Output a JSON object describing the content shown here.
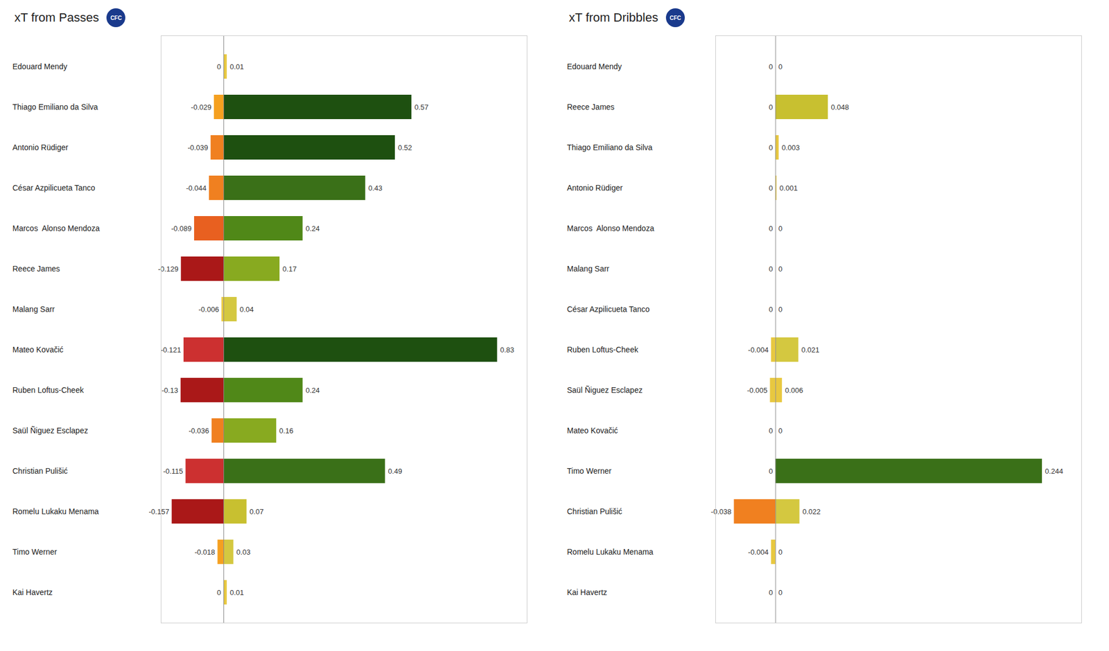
{
  "chart_data": [
    {
      "type": "bar",
      "title": "xT from Passes",
      "orientation": "horizontal",
      "categories": [
        "Edouard Mendy",
        "Thiago Emiliano da Silva",
        "Antonio Rüdiger",
        "César Azpilicueta Tanco",
        "Marcos  Alonso Mendoza",
        "Reece James",
        "Malang Sarr",
        "Mateo Kovačić",
        "Ruben Loftus-Cheek",
        "Saül Ñiguez Esclapez",
        "Christian Pulišić",
        "Romelu Lukaku Menama",
        "Timo Werner",
        "Kai Havertz"
      ],
      "series": [
        {
          "values": [
            0,
            -0.029,
            -0.039,
            -0.044,
            -0.089,
            -0.129,
            -0.006,
            -0.121,
            -0.13,
            -0.036,
            -0.115,
            -0.157,
            -0.018,
            0
          ],
          "colors": [
            "#e8c840",
            "#f5a020",
            "#f08020",
            "#f08020",
            "#e86020",
            "#aa1818",
            "#e8c840",
            "#cc3030",
            "#aa1818",
            "#f08020",
            "#cc3030",
            "#aa1818",
            "#f5a020",
            "#e8c840"
          ]
        },
        {
          "values": [
            0.01,
            0.57,
            0.52,
            0.43,
            0.24,
            0.17,
            0.04,
            0.83,
            0.24,
            0.16,
            0.49,
            0.07,
            0.03,
            0.01
          ],
          "colors": [
            "#e8c840",
            "#1e5010",
            "#1e5010",
            "#3a7018",
            "#508818",
            "#88aa20",
            "#d4c840",
            "#1e5010",
            "#508818",
            "#88aa20",
            "#3a7018",
            "#c8c030",
            "#d4c840",
            "#e8c840"
          ]
        }
      ],
      "xlim": [
        -0.19,
        0.92
      ],
      "tick_labels": "y",
      "data_labels": true,
      "annotations": [
        "CFC"
      ]
    },
    {
      "type": "bar",
      "title": "xT from Dribbles",
      "orientation": "horizontal",
      "categories": [
        "Edouard Mendy",
        "Reece James",
        "Thiago Emiliano da Silva",
        "Antonio Rüdiger",
        "Marcos  Alonso Mendoza",
        "Malang Sarr",
        "César Azpilicueta Tanco",
        "Ruben Loftus-Cheek",
        "Saül Ñiguez Esclapez",
        "Mateo Kovačić",
        "Timo Werner",
        "Christian Pulišić",
        "Romelu Lukaku Menama",
        "Kai Havertz"
      ],
      "series": [
        {
          "values": [
            0,
            0,
            0,
            0,
            0,
            0,
            0,
            -0.004,
            -0.005,
            0,
            0,
            -0.038,
            -0.004,
            0
          ],
          "colors": [
            "#e8c840",
            "#e8c840",
            "#e8c840",
            "#e8c840",
            "#e8c840",
            "#e8c840",
            "#e8c840",
            "#e8c840",
            "#e8c840",
            "#e8c840",
            "#e8c840",
            "#f08020",
            "#e8c840",
            "#e8c840"
          ]
        },
        {
          "values": [
            0,
            0.048,
            0.003,
            0.001,
            0,
            0,
            0,
            0.021,
            0.006,
            0,
            0.244,
            0.022,
            0,
            0
          ],
          "colors": [
            "#e8c840",
            "#c8c030",
            "#e8c840",
            "#e8c840",
            "#e8c840",
            "#e8c840",
            "#e8c840",
            "#d4c840",
            "#e8c840",
            "#e8c840",
            "#3a7018",
            "#d4c840",
            "#e8c840",
            "#e8c840"
          ]
        }
      ],
      "xlim": [
        -0.055,
        0.28
      ],
      "tick_labels": "y",
      "data_labels": true,
      "annotations": [
        "CFC"
      ]
    }
  ]
}
